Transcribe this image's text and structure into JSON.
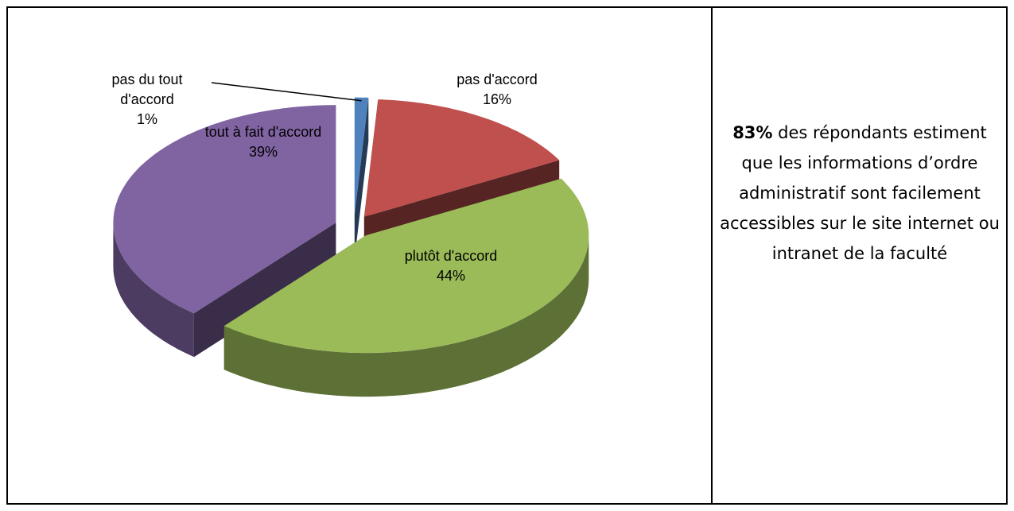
{
  "chart_data": {
    "type": "pie",
    "categories": [
      "pas du tout d'accord",
      "pas d'accord",
      "plutôt d'accord",
      "tout à fait d'accord"
    ],
    "values": [
      1,
      16,
      44,
      39
    ],
    "value_labels": [
      "1%",
      "16%",
      "44%",
      "39%"
    ],
    "colors": [
      "#4f81bd",
      "#c0504d",
      "#9bbb59",
      "#8064a2"
    ]
  },
  "note": {
    "highlight": "83%",
    "text": "des répondants estiment que les informations d’ordre administratif sont facilement accessibles sur le site internet ou intranet de la faculté"
  }
}
